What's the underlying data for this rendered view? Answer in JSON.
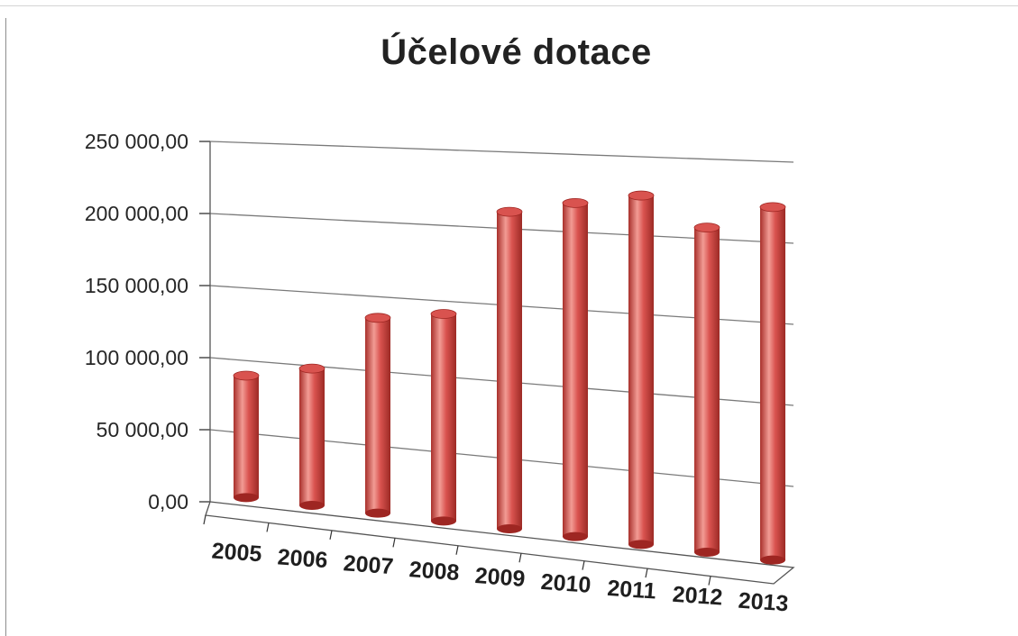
{
  "chart_data": {
    "type": "bar",
    "style": "3d-cylinder",
    "title": "Účelové dotace",
    "xlabel": "",
    "ylabel": "",
    "categories": [
      "2005",
      "2006",
      "2007",
      "2008",
      "2009",
      "2010",
      "2011",
      "2012",
      "2013"
    ],
    "values": [
      84000,
      93000,
      131000,
      137000,
      207000,
      215000,
      222000,
      204000,
      219000
    ],
    "ylim": [
      0,
      250000
    ],
    "yticks": [
      "0,00",
      "50 000,00",
      "100 000,00",
      "150 000,00",
      "200 000,00",
      "250 000,00"
    ],
    "grid": true,
    "legend": "none",
    "colors": {
      "bar": "#d9534f",
      "bar_light": "#f3a6a0",
      "bar_dark": "#9e2622",
      "grid": "#7a7a7a"
    }
  }
}
